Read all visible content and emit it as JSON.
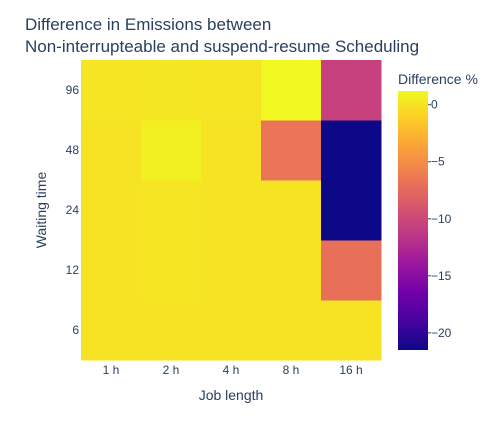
{
  "chart_data": {
    "type": "heatmap",
    "title_line1": "Difference in Emissions between",
    "title_line2": "Non-interrupteable and suspend-resume Scheduling",
    "xlabel": "Job length",
    "ylabel": "Waiting time",
    "x_categories": [
      "1 h",
      "2 h",
      "4 h",
      "8 h",
      "16 h"
    ],
    "y_categories": [
      "6",
      "12",
      "24",
      "48",
      "96"
    ],
    "z": [
      [
        0.0,
        0.0,
        0.0,
        0.0,
        0.0
      ],
      [
        0.0,
        0.1,
        0.0,
        0.0,
        -7.0
      ],
      [
        0.0,
        0.1,
        0.0,
        0.0,
        -21.5
      ],
      [
        0.0,
        0.7,
        0.0,
        -6.7,
        -21.5
      ],
      [
        0.1,
        0.2,
        0.1,
        1.1,
        -10.6
      ]
    ],
    "zmin": -21.5,
    "zmax": 1.2,
    "colorbar": {
      "title": "Difference %",
      "tickvals": [
        0,
        -5,
        -10,
        -15,
        -20
      ],
      "ticktext": [
        "0",
        "−5",
        "−10",
        "−15",
        "−20"
      ]
    },
    "colorscale": [
      "#0d0887",
      "#46039f",
      "#7201a8",
      "#9c179e",
      "#bd3786",
      "#d8576b",
      "#ed7953",
      "#fb9f3a",
      "#fdca26",
      "#f0f921"
    ]
  }
}
